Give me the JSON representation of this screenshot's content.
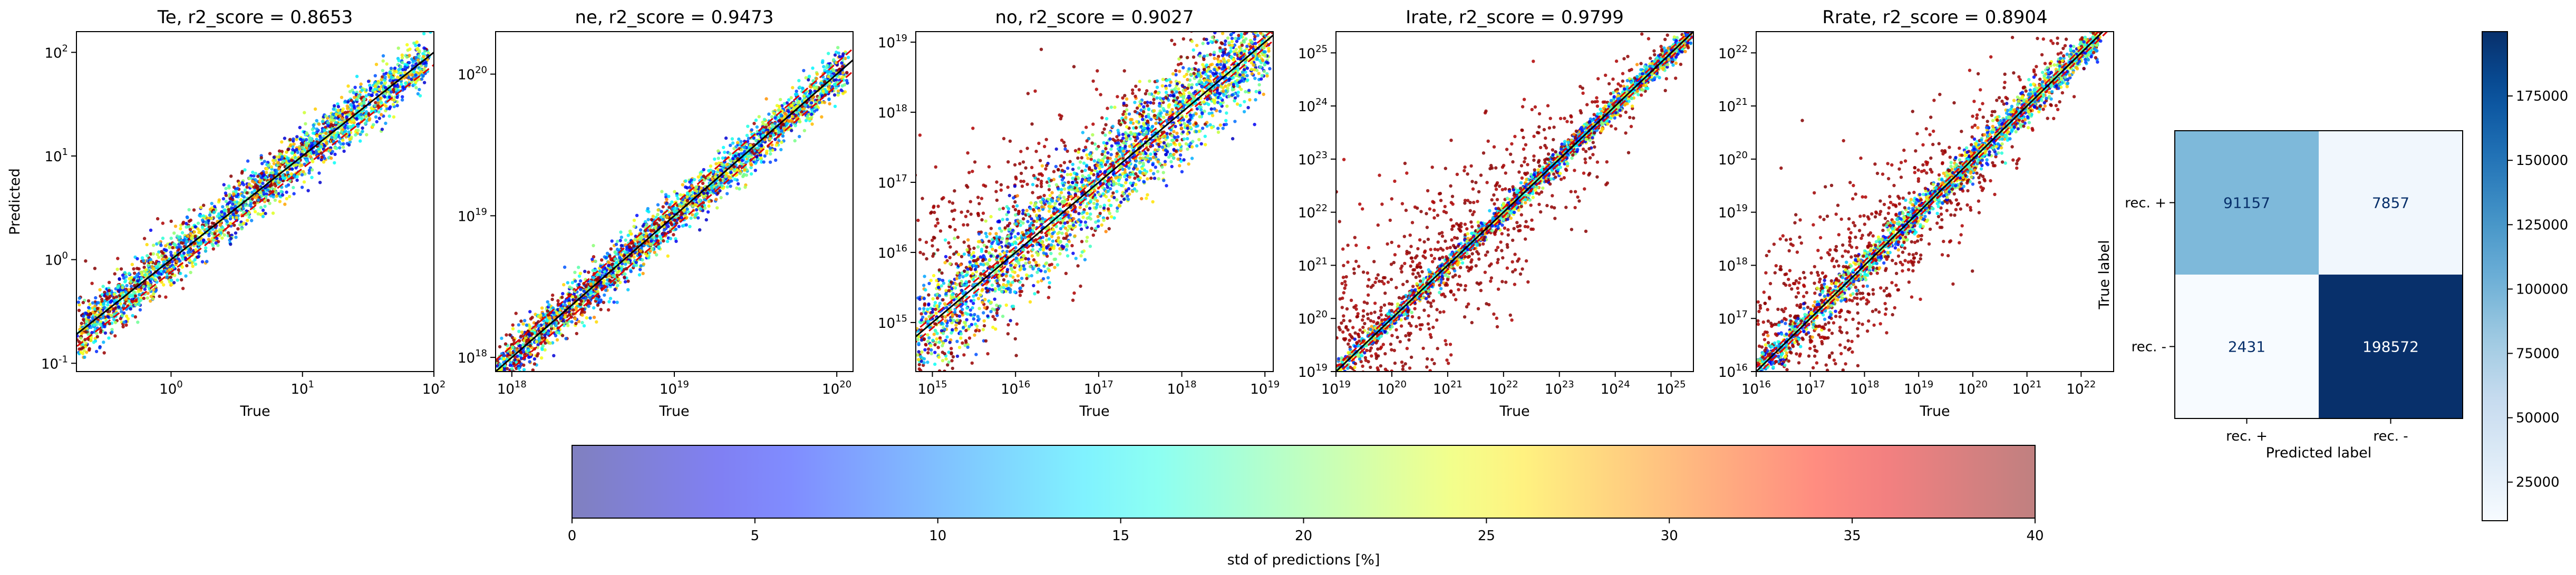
{
  "figure": {
    "panels": [
      {
        "key": "te",
        "title": "Te, r2_score = 0.8653",
        "xlabel": "True",
        "ylabel": "Predicted",
        "xlog": [
          -0.72,
          2.0
        ],
        "ylog": [
          -1.08,
          2.2
        ],
        "xticks": [
          0,
          1,
          2
        ],
        "yticks": [
          -1,
          0,
          1,
          2
        ]
      },
      {
        "key": "ne",
        "title": "ne, r2_score = 0.9473",
        "xlabel": "True",
        "ylabel": "",
        "xlog": [
          17.9,
          20.1
        ],
        "ylog": [
          17.9,
          20.3
        ],
        "xticks": [
          18,
          19,
          20
        ],
        "yticks": [
          18,
          19,
          20
        ]
      },
      {
        "key": "no",
        "title": "no, r2_score = 0.9027",
        "xlabel": "True",
        "ylabel": "",
        "xlog": [
          14.8,
          19.1
        ],
        "ylog": [
          14.3,
          19.15
        ],
        "xticks": [
          15,
          16,
          17,
          18,
          19
        ],
        "yticks": [
          15,
          16,
          17,
          18,
          19
        ]
      },
      {
        "key": "irate",
        "title": "Irate, r2_score = 0.9799",
        "xlabel": "True",
        "ylabel": "",
        "xlog": [
          19.0,
          25.4
        ],
        "ylog": [
          19.0,
          25.4
        ],
        "xticks": [
          19,
          20,
          21,
          22,
          23,
          24,
          25
        ],
        "yticks": [
          19,
          20,
          21,
          22,
          23,
          24,
          25
        ]
      },
      {
        "key": "rrate",
        "title": "Rrate, r2_score = 0.8904",
        "xlabel": "True",
        "ylabel": "",
        "xlog": [
          16.0,
          22.6
        ],
        "ylog": [
          16.0,
          22.4
        ],
        "xticks": [
          16,
          17,
          18,
          19,
          20,
          21,
          22
        ],
        "yticks": [
          16,
          17,
          18,
          19,
          20,
          21,
          22
        ]
      }
    ],
    "colorbar": {
      "label": "std of predictions [%]",
      "ticks": [
        0,
        5,
        10,
        15,
        20,
        25,
        30,
        35,
        40
      ],
      "range": [
        0,
        40
      ],
      "colormap": "jet"
    },
    "confusion_matrix": {
      "row_labels": [
        "rec. +",
        "rec. -"
      ],
      "col_labels": [
        "rec. +",
        "rec. -"
      ],
      "xlabel": "Predicted label",
      "ylabel": "True label",
      "values": [
        [
          91157,
          7857
        ],
        [
          2431,
          198572
        ]
      ],
      "colorbar_ticks": [
        25000,
        50000,
        75000,
        100000,
        125000,
        150000,
        175000
      ],
      "colormap": "Blues"
    }
  },
  "chart_data": [
    {
      "type": "scatter",
      "title": "Te, r2_score = 0.8653",
      "xlabel": "True",
      "ylabel": "Predicted",
      "xscale": "log",
      "yscale": "log",
      "xlim": [
        0.19,
        100
      ],
      "ylim": [
        0.083,
        158
      ],
      "color_by": "std of predictions [%]",
      "reference_lines": [
        "y = x (black)",
        "dashed offset (red)"
      ],
      "r2_score": 0.8653
    },
    {
      "type": "scatter",
      "title": "ne, r2_score = 0.9473",
      "xlabel": "True",
      "xscale": "log",
      "yscale": "log",
      "xlim": [
        7.9e+17,
        1.26e+20
      ],
      "ylim": [
        7.9e+17,
        2e+20
      ],
      "r2_score": 0.9473
    },
    {
      "type": "scatter",
      "title": "no, r2_score = 0.9027",
      "xlabel": "True",
      "xscale": "log",
      "yscale": "log",
      "xlim": [
        630000000000000.0,
        1.26e+19
      ],
      "ylim": [
        200000000000000.0,
        1.4e+19
      ],
      "r2_score": 0.9027
    },
    {
      "type": "scatter",
      "title": "Irate, r2_score = 0.9799",
      "xlabel": "True",
      "xscale": "log",
      "yscale": "log",
      "xlim": [
        1e+19,
        2.5e+25
      ],
      "ylim": [
        1e+19,
        2.5e+25
      ],
      "r2_score": 0.9799
    },
    {
      "type": "scatter",
      "title": "Rrate, r2_score = 0.8904",
      "xlabel": "True",
      "xscale": "log",
      "yscale": "log",
      "xlim": [
        1e+16,
        4e+22
      ],
      "ylim": [
        1e+16,
        2.5e+22
      ],
      "r2_score": 0.8904
    },
    {
      "type": "heatmap",
      "xlabel": "Predicted label",
      "ylabel": "True label",
      "x": [
        "rec. +",
        "rec. -"
      ],
      "y": [
        "rec. +",
        "rec. -"
      ],
      "values": [
        [
          91157,
          7857
        ],
        [
          2431,
          198572
        ]
      ]
    }
  ]
}
